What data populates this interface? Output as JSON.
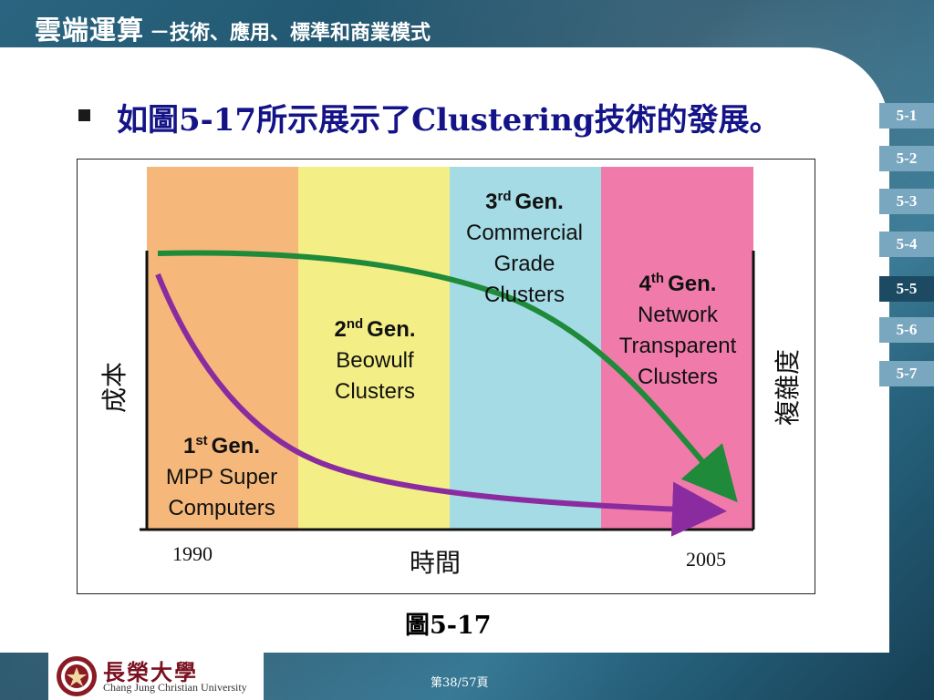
{
  "header": {
    "title_main": "雲端運算",
    "title_sub": "－技術、應用、標準和商業模式"
  },
  "nav": {
    "items": [
      "5-1",
      "5-2",
      "5-3",
      "5-4",
      "5-5",
      "5-6",
      "5-7"
    ],
    "active": "5-5"
  },
  "bullet": {
    "text": "如圖5-17所示展示了Clustering技術的發展。"
  },
  "diagram": {
    "y_label": "成本",
    "y2_label": "複雜度",
    "x_label": "時間",
    "x_start": "1990",
    "x_end": "2005",
    "generations": [
      {
        "number": "1",
        "suffix": "st",
        "gen": "Gen.",
        "lines": [
          "MPP Super",
          "Computers"
        ],
        "color": "#f5b87a"
      },
      {
        "number": "2",
        "suffix": "nd",
        "gen": "Gen.",
        "lines": [
          "Beowulf",
          "Clusters"
        ],
        "color": "#f3ef86"
      },
      {
        "number": "3",
        "suffix": "rd",
        "gen": "Gen.",
        "lines": [
          "Commercial",
          "Grade",
          "Clusters"
        ],
        "color": "#a5dbe5"
      },
      {
        "number": "4",
        "suffix": "th",
        "gen": "Gen.",
        "lines": [
          "Network",
          "Transparent",
          "Clusters"
        ],
        "color": "#f07bab"
      }
    ],
    "curve_colors": {
      "complexity": "#1f8a3a",
      "cost": "#8a2ca0"
    }
  },
  "caption": "圖5-17",
  "footer": {
    "name_zh": "長榮大學",
    "name_en": "Chang Jung Christian University",
    "page": "第38/57頁"
  }
}
